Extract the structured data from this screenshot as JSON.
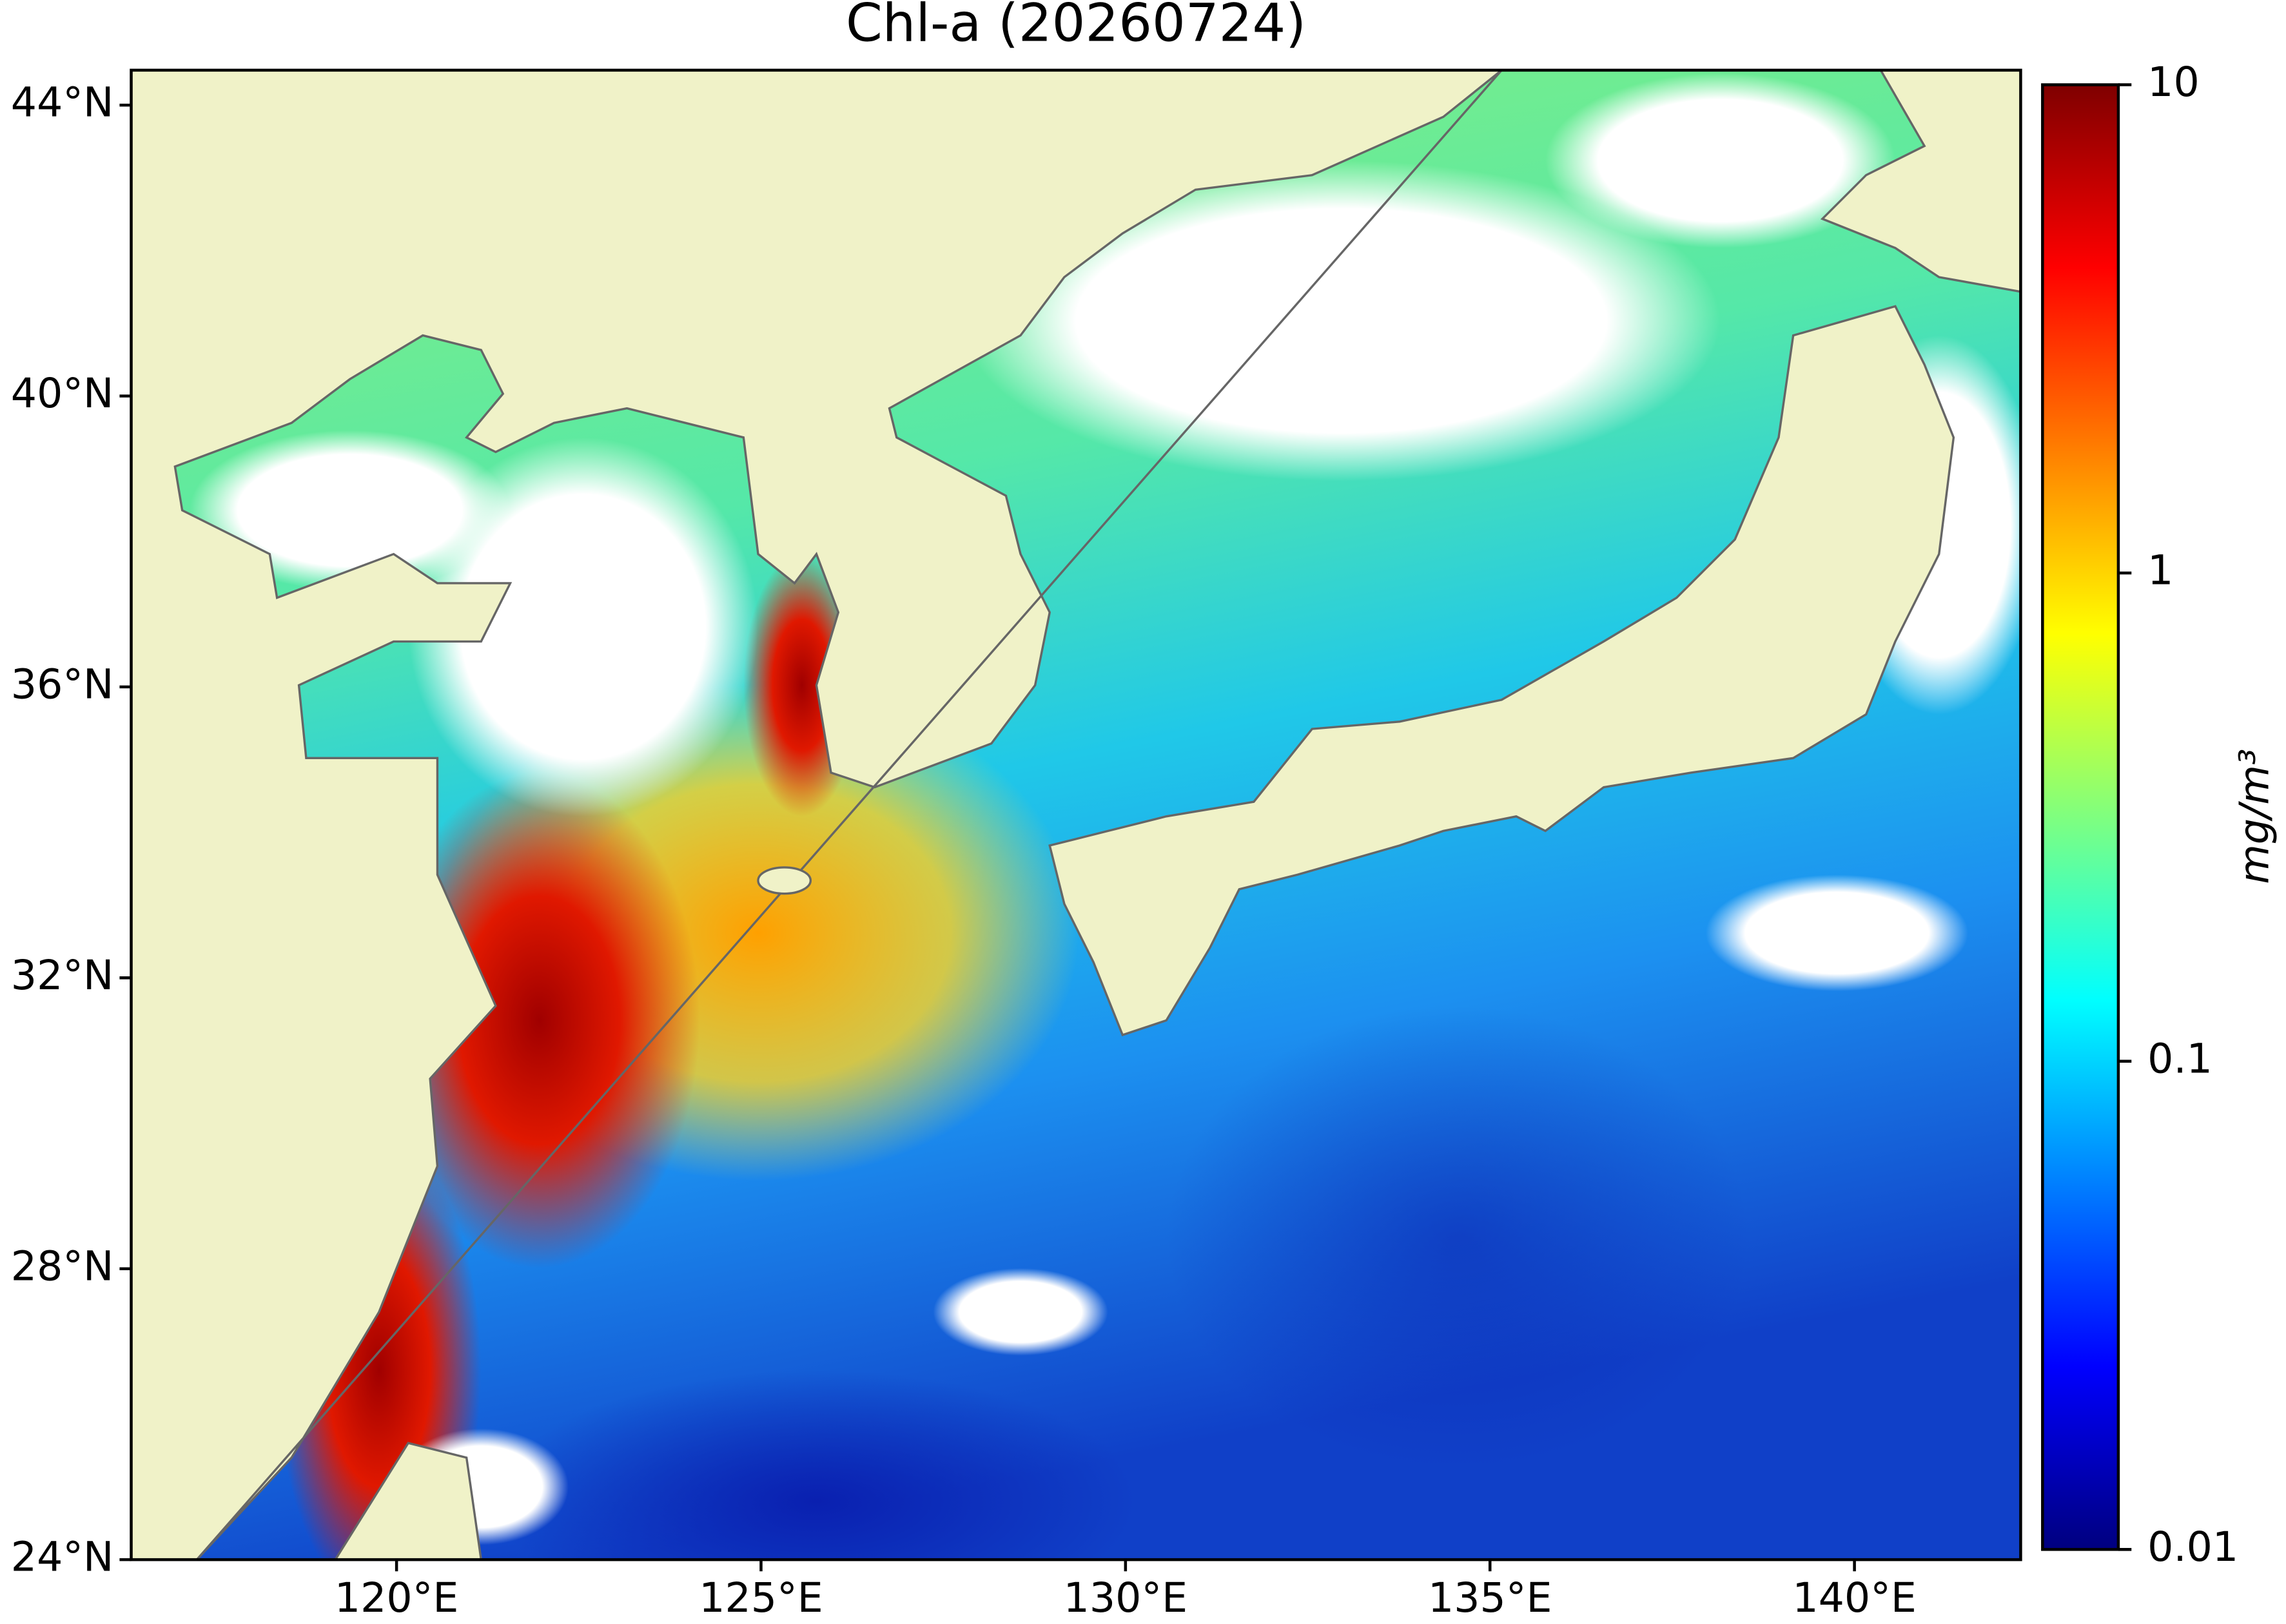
{
  "chart_data": {
    "type": "map",
    "title": "Chl-a (20260724)",
    "xlim": [
      116.36,
      142.28
    ],
    "ylim": [
      24,
      44.48
    ],
    "xticks": [
      {
        "value": 120,
        "label": "120°E"
      },
      {
        "value": 125,
        "label": "125°E"
      },
      {
        "value": 130,
        "label": "130°E"
      },
      {
        "value": 135,
        "label": "135°E"
      },
      {
        "value": 140,
        "label": "140°E"
      }
    ],
    "yticks": [
      {
        "value": 24,
        "label": "24°N"
      },
      {
        "value": 28,
        "label": "28°N"
      },
      {
        "value": 32,
        "label": "32°N"
      },
      {
        "value": 36,
        "label": "36°N"
      },
      {
        "value": 40,
        "label": "40°N"
      },
      {
        "value": 44,
        "label": "44°N"
      }
    ],
    "colorbar": {
      "label": "mg/m³",
      "colormap": "jet",
      "log_scale": true,
      "lim": [
        0.01,
        10
      ],
      "ticks": [
        0.01,
        0.1,
        1,
        10
      ]
    }
  }
}
